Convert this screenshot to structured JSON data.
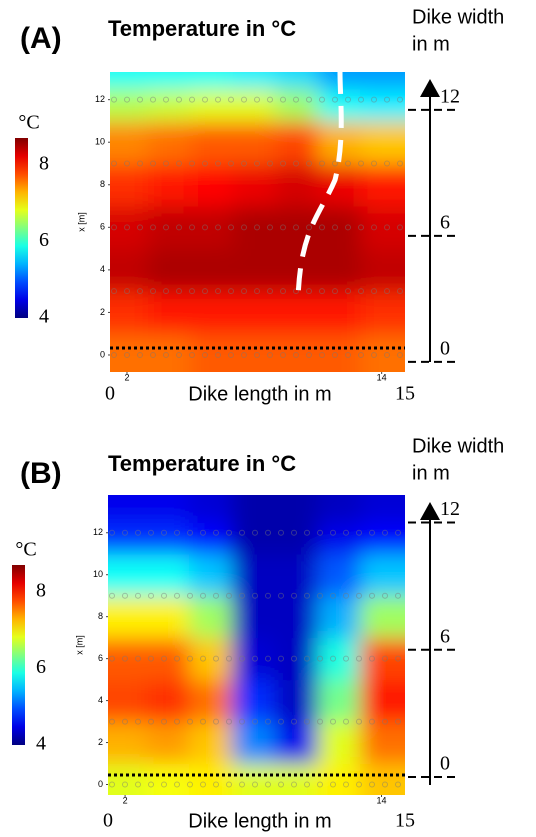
{
  "chart_data": [
    {
      "type": "heatmap",
      "panel_label": "(A)",
      "title": "Temperature in °C",
      "colormap": "jet",
      "colorbar_label": "°C",
      "clim": [
        4,
        8.7
      ],
      "colorbar_ticks": [
        4,
        6,
        8
      ],
      "y_label": "x [m]",
      "xlim": [
        1.2,
        15.1
      ],
      "xticks": [
        2,
        14
      ],
      "ylim": [
        -0.8,
        13.3
      ],
      "yticks": [
        0,
        2,
        4,
        6,
        8,
        10,
        12
      ],
      "length_label": "Dike length in m",
      "length_ticks": [
        0,
        15
      ],
      "width_label": [
        "Dike width",
        "in m"
      ],
      "y2lim": [
        -0.48,
        13.8
      ],
      "y2ticks": [
        0,
        6,
        12
      ],
      "x": [
        2,
        4,
        6,
        8,
        10,
        12,
        14
      ],
      "y": [
        0,
        2,
        4,
        6,
        8,
        10,
        12,
        13
      ],
      "values": [
        [
          7.6,
          7.6,
          7.7,
          7.7,
          7.7,
          7.7,
          7.6
        ],
        [
          7.9,
          8,
          8,
          8,
          8,
          8,
          7.9
        ],
        [
          8.4,
          8.5,
          8.5,
          8.5,
          8.5,
          8.5,
          8.4
        ],
        [
          8.3,
          8.4,
          8.4,
          8.5,
          8.5,
          8.5,
          8.3
        ],
        [
          7.9,
          8,
          8.1,
          8.2,
          8.3,
          8.2,
          8
        ],
        [
          7.5,
          7.6,
          7.7,
          7.7,
          7.8,
          7.3,
          7.2
        ],
        [
          6.6,
          6.7,
          6.8,
          6.8,
          6.5,
          5.8,
          5.7
        ],
        [
          5.8,
          5.8,
          5.8,
          5.7,
          5.6,
          5.3,
          5.3
        ]
      ]
    },
    {
      "type": "heatmap",
      "panel_label": "(B)",
      "title": "Temperature in °C",
      "colormap": "jet",
      "colorbar_label": "°C",
      "clim": [
        4,
        8.7
      ],
      "colorbar_ticks": [
        4,
        6,
        8
      ],
      "y_label": "x [m]",
      "xlim": [
        1.2,
        15.1
      ],
      "xticks": [
        2,
        14
      ],
      "ylim": [
        -0.5,
        13.8
      ],
      "yticks": [
        0,
        2,
        4,
        6,
        8,
        10,
        12
      ],
      "length_label": "Dike length in m",
      "length_ticks": [
        0,
        15
      ],
      "width_label": [
        "Dike width",
        "in m"
      ],
      "y2lim": [
        -0.85,
        13.3
      ],
      "y2ticks": [
        0,
        6,
        12
      ],
      "x": [
        2,
        4,
        6,
        8,
        10,
        12,
        14
      ],
      "y": [
        0,
        2,
        4,
        6,
        8,
        10,
        12,
        13
      ],
      "values": [
        [
          6.8,
          6.9,
          7,
          6.8,
          6.8,
          7,
          7.2
        ],
        [
          7.3,
          7.4,
          7.2,
          5.2,
          4.5,
          6.8,
          7.6
        ],
        [
          7.8,
          7.9,
          7.6,
          4.8,
          4.3,
          6.3,
          8
        ],
        [
          7.7,
          7.7,
          7.2,
          4.4,
          4.3,
          5.9,
          7.8
        ],
        [
          7,
          7,
          6.5,
          4.3,
          4.3,
          5.4,
          6.5
        ],
        [
          5.8,
          5.8,
          5.5,
          4.3,
          4.3,
          5,
          5.5
        ],
        [
          4.8,
          4.8,
          4.6,
          4.2,
          4.2,
          4.5,
          4.6
        ],
        [
          4.5,
          4.5,
          4.4,
          4.2,
          4.2,
          4.3,
          4.4
        ]
      ]
    }
  ]
}
